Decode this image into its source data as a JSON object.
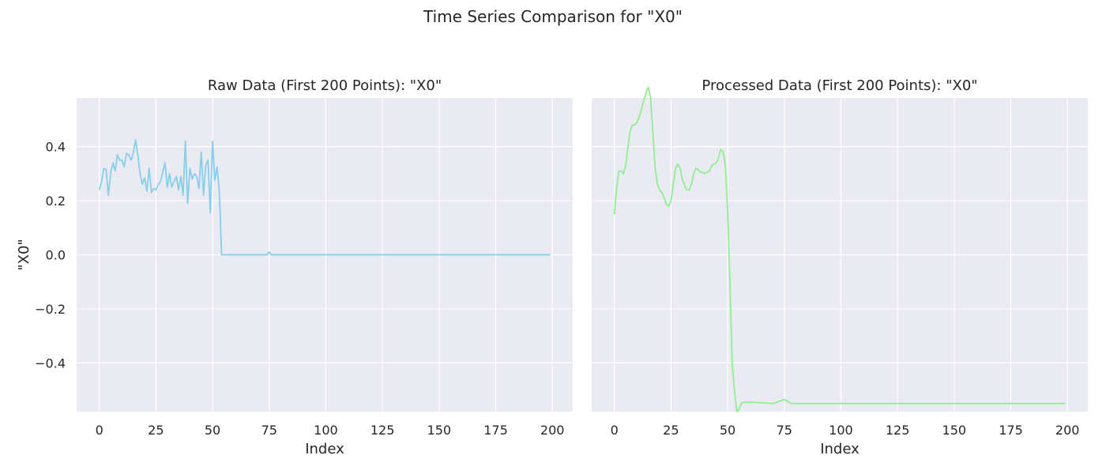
{
  "figure": {
    "title": "Time Series Comparison for \"X0\""
  },
  "style": {
    "panel_background": "#eaeaf2",
    "grid_color": "#ffffff",
    "text_color": "#262626"
  },
  "chart_data": [
    {
      "type": "line",
      "title": "Raw Data (First 200 Points): \"X0\"",
      "xlabel": "Index",
      "ylabel": "\"X0\"",
      "xlim": [
        -10,
        209
      ],
      "ylim": [
        -0.58,
        0.58
      ],
      "xticks": [
        0,
        25,
        50,
        75,
        100,
        125,
        150,
        175,
        200
      ],
      "xtick_labels": [
        "0",
        "25",
        "50",
        "75",
        "100",
        "125",
        "150",
        "175",
        "200"
      ],
      "yticks": [
        -0.4,
        -0.2,
        0.0,
        0.2,
        0.4
      ],
      "ytick_labels": [
        "−0.4",
        "−0.2",
        "0.0",
        "0.2",
        "0.4"
      ],
      "grid": true,
      "series": [
        {
          "color": "#87ceeb",
          "points": [
            [
              0,
              0.24
            ],
            [
              1,
              0.27
            ],
            [
              2,
              0.32
            ],
            [
              3,
              0.315
            ],
            [
              4,
              0.22
            ],
            [
              5,
              0.3
            ],
            [
              6,
              0.34
            ],
            [
              7,
              0.31
            ],
            [
              8,
              0.37
            ],
            [
              9,
              0.35
            ],
            [
              10,
              0.35
            ],
            [
              11,
              0.325
            ],
            [
              12,
              0.375
            ],
            [
              13,
              0.37
            ],
            [
              14,
              0.35
            ],
            [
              15,
              0.375
            ],
            [
              16,
              0.425
            ],
            [
              17,
              0.37
            ],
            [
              18,
              0.3
            ],
            [
              19,
              0.26
            ],
            [
              20,
              0.285
            ],
            [
              21,
              0.235
            ],
            [
              22,
              0.32
            ],
            [
              23,
              0.23
            ],
            [
              24,
              0.245
            ],
            [
              25,
              0.24
            ],
            [
              26,
              0.26
            ],
            [
              27,
              0.27
            ],
            [
              28,
              0.305
            ],
            [
              29,
              0.34
            ],
            [
              30,
              0.25
            ],
            [
              31,
              0.3
            ],
            [
              32,
              0.25
            ],
            [
              33,
              0.27
            ],
            [
              34,
              0.29
            ],
            [
              35,
              0.24
            ],
            [
              36,
              0.29
            ],
            [
              37,
              0.22
            ],
            [
              38,
              0.42
            ],
            [
              39,
              0.19
            ],
            [
              40,
              0.32
            ],
            [
              41,
              0.28
            ],
            [
              42,
              0.3
            ],
            [
              43,
              0.29
            ],
            [
              44,
              0.245
            ],
            [
              45,
              0.38
            ],
            [
              46,
              0.22
            ],
            [
              47,
              0.33
            ],
            [
              48,
              0.35
            ],
            [
              49,
              0.155
            ],
            [
              50,
              0.42
            ],
            [
              51,
              0.275
            ],
            [
              52,
              0.325
            ],
            [
              53,
              0.235
            ],
            [
              54,
              0.0
            ],
            [
              74,
              0.0
            ],
            [
              75,
              0.01
            ],
            [
              76,
              0.0
            ],
            [
              199,
              0.0
            ]
          ]
        }
      ]
    },
    {
      "type": "line",
      "title": "Processed Data (First 200 Points): \"X0\"",
      "xlabel": "Index",
      "ylabel": "",
      "xlim": [
        -10,
        209
      ],
      "ylim": [
        -0.58,
        0.58
      ],
      "xticks": [
        0,
        25,
        50,
        75,
        100,
        125,
        150,
        175,
        200
      ],
      "xtick_labels": [
        "0",
        "25",
        "50",
        "75",
        "100",
        "125",
        "150",
        "175",
        "200"
      ],
      "yticks": [
        -0.4,
        -0.2,
        0.0,
        0.2,
        0.4
      ],
      "grid": true,
      "series": [
        {
          "color": "#90ee90",
          "points": [
            [
              0,
              0.15
            ],
            [
              1,
              0.25
            ],
            [
              2,
              0.31
            ],
            [
              3,
              0.31
            ],
            [
              4,
              0.3
            ],
            [
              5,
              0.33
            ],
            [
              6,
              0.4
            ],
            [
              7,
              0.46
            ],
            [
              8,
              0.48
            ],
            [
              9,
              0.48
            ],
            [
              10,
              0.49
            ],
            [
              11,
              0.51
            ],
            [
              12,
              0.54
            ],
            [
              13,
              0.57
            ],
            [
              14,
              0.6
            ],
            [
              15,
              0.62
            ],
            [
              16,
              0.58
            ],
            [
              17,
              0.45
            ],
            [
              18,
              0.32
            ],
            [
              19,
              0.26
            ],
            [
              20,
              0.24
            ],
            [
              21,
              0.23
            ],
            [
              22,
              0.21
            ],
            [
              23,
              0.185
            ],
            [
              24,
              0.18
            ],
            [
              25,
              0.2
            ],
            [
              26,
              0.26
            ],
            [
              27,
              0.32
            ],
            [
              28,
              0.335
            ],
            [
              29,
              0.32
            ],
            [
              30,
              0.28
            ],
            [
              31,
              0.255
            ],
            [
              32,
              0.24
            ],
            [
              33,
              0.24
            ],
            [
              34,
              0.26
            ],
            [
              35,
              0.3
            ],
            [
              36,
              0.32
            ],
            [
              37,
              0.315
            ],
            [
              38,
              0.305
            ],
            [
              39,
              0.305
            ],
            [
              40,
              0.3
            ],
            [
              41,
              0.305
            ],
            [
              42,
              0.31
            ],
            [
              43,
              0.33
            ],
            [
              44,
              0.335
            ],
            [
              45,
              0.34
            ],
            [
              46,
              0.36
            ],
            [
              47,
              0.39
            ],
            [
              48,
              0.38
            ],
            [
              49,
              0.33
            ],
            [
              50,
              0.16
            ],
            [
              51,
              -0.1
            ],
            [
              52,
              -0.4
            ],
            [
              53,
              -0.5
            ],
            [
              54,
              -0.58
            ],
            [
              55,
              -0.57
            ],
            [
              56,
              -0.55
            ],
            [
              57,
              -0.545
            ],
            [
              60,
              -0.545
            ],
            [
              70,
              -0.55
            ],
            [
              72,
              -0.545
            ],
            [
              75,
              -0.535
            ],
            [
              78,
              -0.55
            ],
            [
              199,
              -0.55
            ]
          ]
        }
      ]
    }
  ]
}
